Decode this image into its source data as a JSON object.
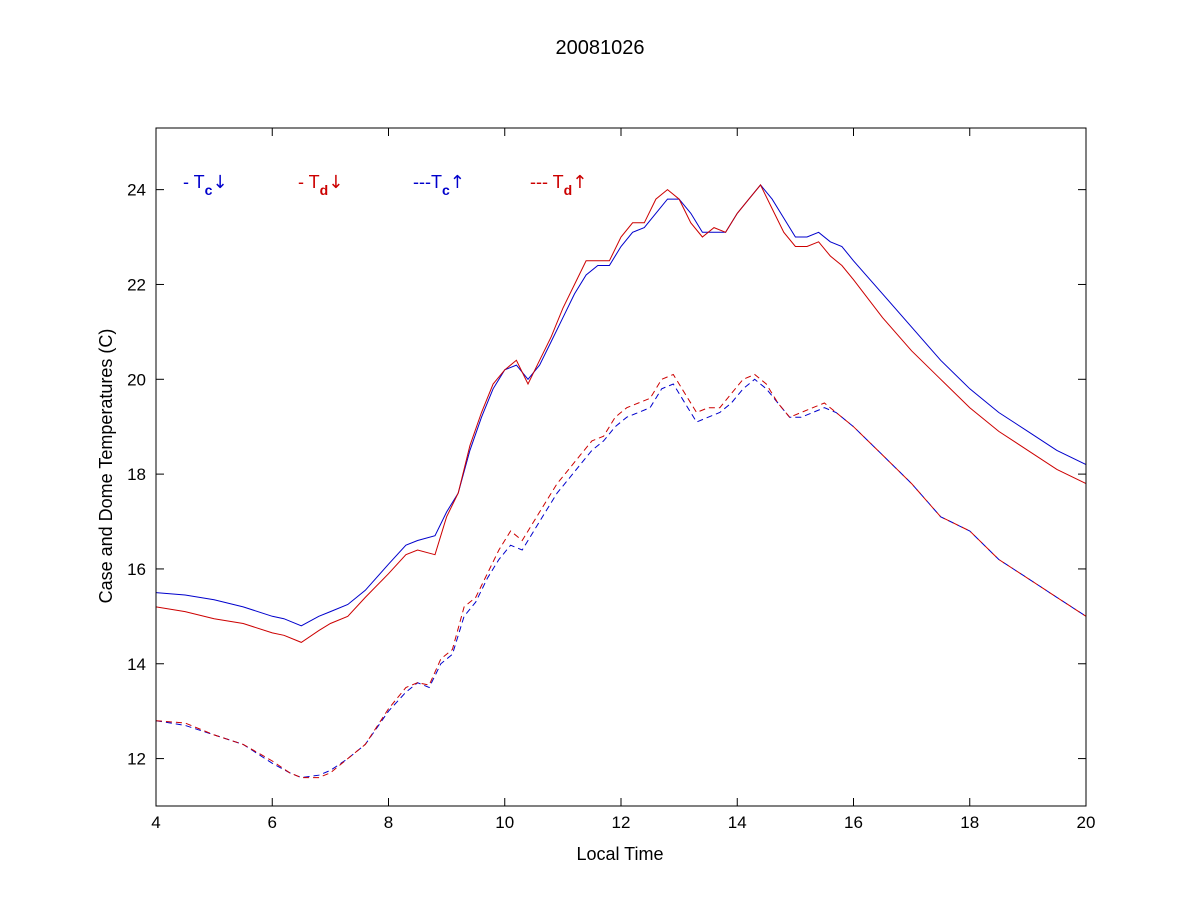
{
  "chart_data": {
    "type": "line",
    "title": "20081026",
    "xlabel": "Local Time",
    "ylabel": "Case and Dome Temperatures (C)",
    "xlim": [
      4,
      20
    ],
    "ylim": [
      11,
      25.3
    ],
    "xticks": [
      4,
      6,
      8,
      10,
      12,
      14,
      16,
      18,
      20
    ],
    "yticks": [
      12,
      14,
      16,
      18,
      20,
      22,
      24
    ],
    "grid": false,
    "legend_position": "top-left",
    "legend": [
      {
        "prefix": "- T",
        "sub": "c",
        "arrow": "↓",
        "color": "#0000cc"
      },
      {
        "prefix": "- T",
        "sub": "d",
        "arrow": "↓",
        "color": "#cc0000"
      },
      {
        "prefix": "---T",
        "sub": "c",
        "arrow": "↑",
        "color": "#0000cc"
      },
      {
        "prefix": "--- T",
        "sub": "d",
        "arrow": "↑",
        "color": "#cc0000"
      }
    ],
    "series": [
      {
        "color": "#0000cc",
        "dash": "solid",
        "x": [
          4,
          4.5,
          5,
          5.5,
          6,
          6.2,
          6.5,
          6.8,
          7,
          7.3,
          7.6,
          8,
          8.3,
          8.5,
          8.8,
          9,
          9.2,
          9.4,
          9.6,
          9.8,
          10,
          10.2,
          10.4,
          10.6,
          10.8,
          11,
          11.2,
          11.4,
          11.6,
          11.8,
          12,
          12.2,
          12.4,
          12.6,
          12.8,
          13,
          13.2,
          13.4,
          13.6,
          13.8,
          14,
          14.2,
          14.4,
          14.6,
          14.8,
          15,
          15.2,
          15.4,
          15.6,
          15.8,
          16,
          16.5,
          17,
          17.5,
          18,
          18.5,
          19,
          19.5,
          20
        ],
        "y": [
          15.5,
          15.45,
          15.35,
          15.2,
          15.0,
          14.95,
          14.8,
          15.0,
          15.1,
          15.25,
          15.55,
          16.1,
          16.5,
          16.6,
          16.7,
          17.2,
          17.6,
          18.5,
          19.2,
          19.8,
          20.2,
          20.3,
          20.0,
          20.3,
          20.8,
          21.3,
          21.8,
          22.2,
          22.4,
          22.4,
          22.8,
          23.1,
          23.2,
          23.5,
          23.8,
          23.8,
          23.5,
          23.1,
          23.1,
          23.1,
          23.5,
          23.8,
          24.1,
          23.8,
          23.4,
          23.0,
          23.0,
          23.1,
          22.9,
          22.8,
          22.5,
          21.8,
          21.1,
          20.4,
          19.8,
          19.3,
          18.9,
          18.5,
          18.2
        ]
      },
      {
        "color": "#cc0000",
        "dash": "solid",
        "x": [
          4,
          4.5,
          5,
          5.5,
          6,
          6.2,
          6.5,
          6.8,
          7,
          7.3,
          7.6,
          8,
          8.3,
          8.5,
          8.8,
          9,
          9.2,
          9.4,
          9.6,
          9.8,
          10,
          10.2,
          10.4,
          10.6,
          10.8,
          11,
          11.2,
          11.4,
          11.6,
          11.8,
          12,
          12.2,
          12.4,
          12.6,
          12.8,
          13,
          13.2,
          13.4,
          13.6,
          13.8,
          14,
          14.2,
          14.4,
          14.6,
          14.8,
          15,
          15.2,
          15.4,
          15.6,
          15.8,
          16,
          16.5,
          17,
          17.5,
          18,
          18.5,
          19,
          19.5,
          20
        ],
        "y": [
          15.2,
          15.1,
          14.95,
          14.85,
          14.65,
          14.6,
          14.45,
          14.7,
          14.85,
          15.0,
          15.4,
          15.9,
          16.3,
          16.4,
          16.3,
          17.1,
          17.6,
          18.6,
          19.3,
          19.9,
          20.2,
          20.4,
          19.9,
          20.4,
          20.9,
          21.5,
          22.0,
          22.5,
          22.5,
          22.5,
          23.0,
          23.3,
          23.3,
          23.8,
          24.0,
          23.8,
          23.3,
          23.0,
          23.2,
          23.1,
          23.5,
          23.8,
          24.1,
          23.6,
          23.1,
          22.8,
          22.8,
          22.9,
          22.6,
          22.4,
          22.1,
          21.3,
          20.6,
          20.0,
          19.4,
          18.9,
          18.5,
          18.1,
          17.8
        ]
      },
      {
        "color": "#0000cc",
        "dash": "dashed",
        "x": [
          4,
          4.5,
          5,
          5.5,
          6,
          6.3,
          6.5,
          6.8,
          7,
          7.3,
          7.6,
          8,
          8.3,
          8.5,
          8.7,
          8.9,
          9.1,
          9.3,
          9.5,
          9.7,
          9.9,
          10.1,
          10.3,
          10.5,
          10.7,
          10.9,
          11.1,
          11.3,
          11.5,
          11.7,
          11.9,
          12.1,
          12.3,
          12.5,
          12.7,
          12.9,
          13.1,
          13.3,
          13.5,
          13.7,
          13.9,
          14.1,
          14.3,
          14.5,
          14.7,
          14.9,
          15.1,
          15.3,
          15.5,
          15.7,
          16,
          16.5,
          17,
          17.5,
          18,
          18.5,
          19,
          19.5,
          20
        ],
        "y": [
          12.8,
          12.7,
          12.5,
          12.3,
          11.9,
          11.7,
          11.6,
          11.65,
          11.75,
          12.0,
          12.3,
          13.0,
          13.4,
          13.6,
          13.5,
          14.0,
          14.2,
          15.0,
          15.3,
          15.8,
          16.2,
          16.5,
          16.4,
          16.8,
          17.2,
          17.6,
          17.9,
          18.2,
          18.5,
          18.7,
          19.0,
          19.2,
          19.3,
          19.4,
          19.8,
          19.9,
          19.5,
          19.1,
          19.2,
          19.3,
          19.5,
          19.8,
          20.0,
          19.8,
          19.5,
          19.2,
          19.2,
          19.3,
          19.4,
          19.3,
          19.0,
          18.4,
          17.8,
          17.1,
          16.8,
          16.2,
          15.8,
          15.4,
          15.0
        ]
      },
      {
        "color": "#cc0000",
        "dash": "dashed",
        "x": [
          4,
          4.5,
          5,
          5.5,
          6,
          6.3,
          6.5,
          6.8,
          7,
          7.3,
          7.6,
          8,
          8.3,
          8.5,
          8.7,
          8.9,
          9.1,
          9.3,
          9.5,
          9.7,
          9.9,
          10.1,
          10.3,
          10.5,
          10.7,
          10.9,
          11.1,
          11.3,
          11.5,
          11.7,
          11.9,
          12.1,
          12.3,
          12.5,
          12.7,
          12.9,
          13.1,
          13.3,
          13.5,
          13.7,
          13.9,
          14.1,
          14.3,
          14.5,
          14.7,
          14.9,
          15.1,
          15.3,
          15.5,
          15.7,
          16,
          16.5,
          17,
          17.5,
          18,
          18.5,
          19,
          19.5,
          20
        ],
        "y": [
          12.8,
          12.75,
          12.5,
          12.3,
          11.95,
          11.7,
          11.6,
          11.6,
          11.7,
          12.0,
          12.3,
          13.05,
          13.5,
          13.6,
          13.55,
          14.1,
          14.3,
          15.2,
          15.4,
          15.9,
          16.4,
          16.8,
          16.6,
          17.0,
          17.4,
          17.8,
          18.1,
          18.4,
          18.7,
          18.8,
          19.2,
          19.4,
          19.5,
          19.6,
          20.0,
          20.1,
          19.7,
          19.3,
          19.4,
          19.4,
          19.7,
          20.0,
          20.1,
          19.9,
          19.5,
          19.2,
          19.3,
          19.4,
          19.5,
          19.3,
          19.0,
          18.4,
          17.8,
          17.1,
          16.8,
          16.2,
          15.8,
          15.4,
          15.0
        ]
      }
    ]
  }
}
